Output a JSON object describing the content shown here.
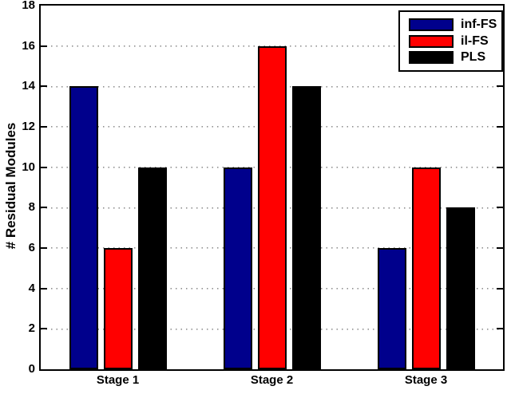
{
  "chart_data": {
    "type": "bar",
    "title": "",
    "xlabel": "",
    "ylabel": "# Residual Modules",
    "categories": [
      "Stage 1",
      "Stage 2",
      "Stage 3"
    ],
    "series": [
      {
        "name": "inf-FS",
        "color": "#00008C",
        "values": [
          14,
          10,
          6
        ]
      },
      {
        "name": "il-FS",
        "color": "#FF0000",
        "values": [
          6,
          16,
          10
        ]
      },
      {
        "name": "PLS",
        "color": "#000000",
        "values": [
          10,
          14,
          8
        ]
      }
    ],
    "ylim": [
      0,
      18
    ],
    "yticks": [
      0,
      2,
      4,
      6,
      8,
      10,
      12,
      14,
      16,
      18
    ],
    "grid": "horizontal-dotted",
    "grid_color": "#8f8f8f",
    "axis_color": "#000000",
    "background_color": "#ffffff",
    "legend_position": "top-right"
  }
}
